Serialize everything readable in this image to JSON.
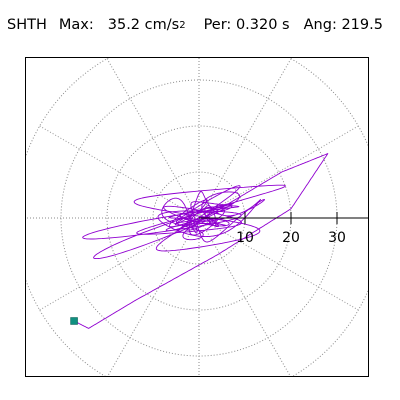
{
  "header": {
    "station": "SHTH",
    "max_label": "Max:",
    "max_value": "35.2",
    "max_unit": "cm/s",
    "max_unit_sup": "2",
    "period_label": "Per:",
    "period_value": "0.320 s",
    "angle_label": "Ang:",
    "angle_value": "219.5"
  },
  "chart_data": {
    "type": "scatter",
    "description_kind": "polar particle-motion trace",
    "radial_tick_labels": [
      "10",
      "20",
      "30"
    ],
    "radial_ticks": [
      10,
      20,
      30
    ],
    "rings": [
      10,
      20,
      30,
      40
    ],
    "spokes_deg": [
      0,
      30,
      60,
      90,
      120,
      150,
      180,
      210,
      240,
      270,
      300,
      330
    ],
    "grid": true,
    "colors": {
      "trace": "#9000d0",
      "grid": "#8a8a8a",
      "axis": "#000000",
      "marker": "#109080"
    },
    "peak_point": {
      "angle_deg": 219.5,
      "radius": 35.2
    }
  }
}
